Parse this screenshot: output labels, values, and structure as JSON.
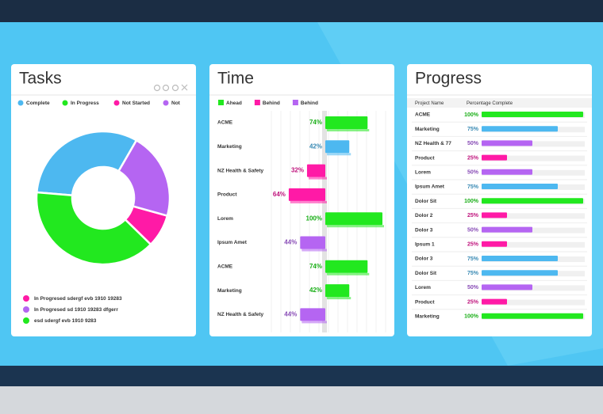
{
  "chart_data": [
    {
      "type": "pie",
      "title": "Tasks",
      "categories": [
        "Complete",
        "In Progress",
        "Not Started",
        "Not"
      ],
      "values": [
        32,
        39,
        8,
        21
      ],
      "colors": [
        "#4db8f0",
        "#22e81f",
        "#ff1aa6",
        "#b565f2"
      ],
      "notes": [
        {
          "text": "In Progresed sdergf evb 1910 19283",
          "color": "#ff1aa6"
        },
        {
          "text": "In Progresed sd 1910 19283 dfgerr",
          "color": "#b565f2"
        },
        {
          "text": "esd sdergf evb 1910 9283",
          "color": "#22e81f"
        }
      ]
    },
    {
      "type": "diverging-bar",
      "title": "Time",
      "categories": [
        "ACME",
        "Marketing",
        "NZ Health & Safety",
        "Product",
        "Lorem",
        "Ipsum Amet",
        "ACME",
        "Marketing",
        "NZ Health & Safety"
      ],
      "xlim": [
        0,
        100
      ],
      "series": [
        {
          "name": "Ahead",
          "color": "#22e81f",
          "side": "right",
          "values": [
            74,
            null,
            null,
            null,
            100,
            null,
            74,
            42,
            null
          ],
          "value_labels": [
            "74%",
            null,
            null,
            null,
            "100%",
            null,
            "74%",
            "42%",
            null
          ]
        },
        {
          "name": "Behind",
          "color": "#ff1aa6",
          "side": "left",
          "values": [
            null,
            null,
            32,
            64,
            null,
            null,
            null,
            null,
            null
          ],
          "value_labels": [
            null,
            null,
            "32%",
            "64%",
            null,
            null,
            null,
            null,
            null
          ]
        },
        {
          "name": "Behind",
          "color": "#b565f2",
          "side": "left",
          "values": [
            null,
            null,
            null,
            null,
            null,
            44,
            null,
            null,
            44
          ],
          "value_labels": [
            null,
            null,
            null,
            null,
            null,
            "44%",
            null,
            null,
            "44%"
          ]
        },
        {
          "color": "#4db8f0",
          "side": "right",
          "values": [
            null,
            42,
            null,
            null,
            null,
            null,
            null,
            null,
            null
          ],
          "value_labels": [
            null,
            "42%",
            null,
            null,
            null,
            null,
            null,
            null,
            null
          ]
        }
      ]
    },
    {
      "type": "progress-bar",
      "title": "Progress",
      "columns": [
        "Project Name",
        "Percentage Complete"
      ],
      "categories": [
        "ACME",
        "Marketing",
        "NZ Health & 77",
        "Product",
        "Lorem",
        "Ipsum Amet",
        "Dolor Sit",
        "Dolor 2",
        "Dolor 3",
        "Ipsum 1",
        "Dolor 3",
        "Dolor Sit",
        "Lorem",
        "Product",
        "Marketing"
      ],
      "values": [
        100,
        75,
        50,
        25,
        50,
        75,
        100,
        25,
        50,
        25,
        75,
        75,
        50,
        25,
        100
      ],
      "value_labels": [
        "100%",
        "75%",
        "50%",
        "25%",
        "50%",
        "75%",
        "100%",
        "25%",
        "50%",
        "25%",
        "75%",
        "75%",
        "50%",
        "25%",
        "100%"
      ],
      "colors": [
        "#22e81f",
        "#4db8f0",
        "#b565f2",
        "#ff1aa6",
        "#b565f2",
        "#4db8f0",
        "#22e81f",
        "#ff1aa6",
        "#b565f2",
        "#ff1aa6",
        "#4db8f0",
        "#4db8f0",
        "#b565f2",
        "#ff1aa6",
        "#22e81f"
      ],
      "xlim": [
        0,
        100
      ]
    }
  ]
}
